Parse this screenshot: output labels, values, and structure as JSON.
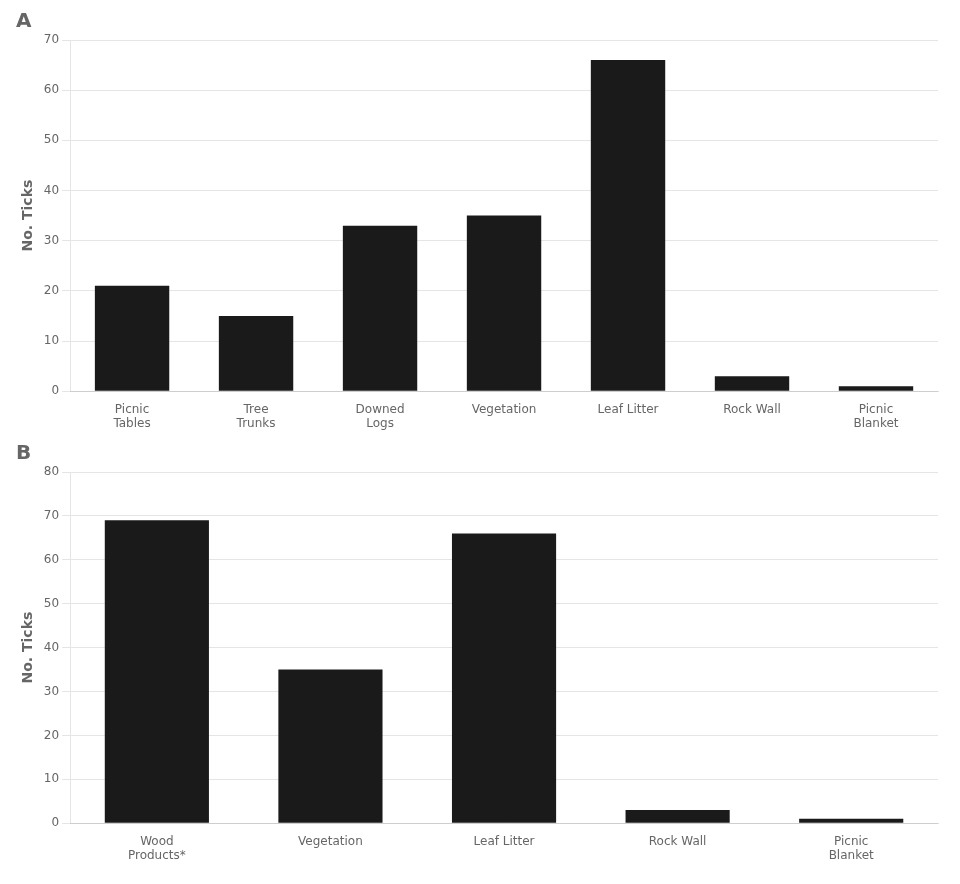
{
  "chart_data": [
    {
      "type": "bar",
      "title": "A",
      "categories": [
        "Picnic\nTables",
        "Tree\nTrunks",
        "Downed\nLogs",
        "Vegetation",
        "Leaf Litter",
        "Rock Wall",
        "Picnic\nBlanket"
      ],
      "values": [
        21,
        15,
        33,
        35,
        66,
        3,
        1
      ],
      "y_label": "No. Ticks",
      "color": "#1a1a1a",
      "ylim": [
        0,
        70
      ],
      "yticks": [
        0,
        10,
        20,
        30,
        40,
        50,
        60,
        70
      ],
      "grid": true
    },
    {
      "type": "bar",
      "title": "B",
      "categories": [
        "Wood\nProducts*",
        "Vegetation",
        "Leaf Litter",
        "Rock Wall",
        "Picnic\nBlanket"
      ],
      "values": [
        69,
        35,
        66,
        3,
        1
      ],
      "y_label": "No. Ticks",
      "color": "#1a1a1a",
      "ylim": [
        0,
        80
      ],
      "yticks": [
        0,
        10,
        20,
        30,
        40,
        50,
        60,
        70,
        80
      ],
      "grid": true
    }
  ]
}
